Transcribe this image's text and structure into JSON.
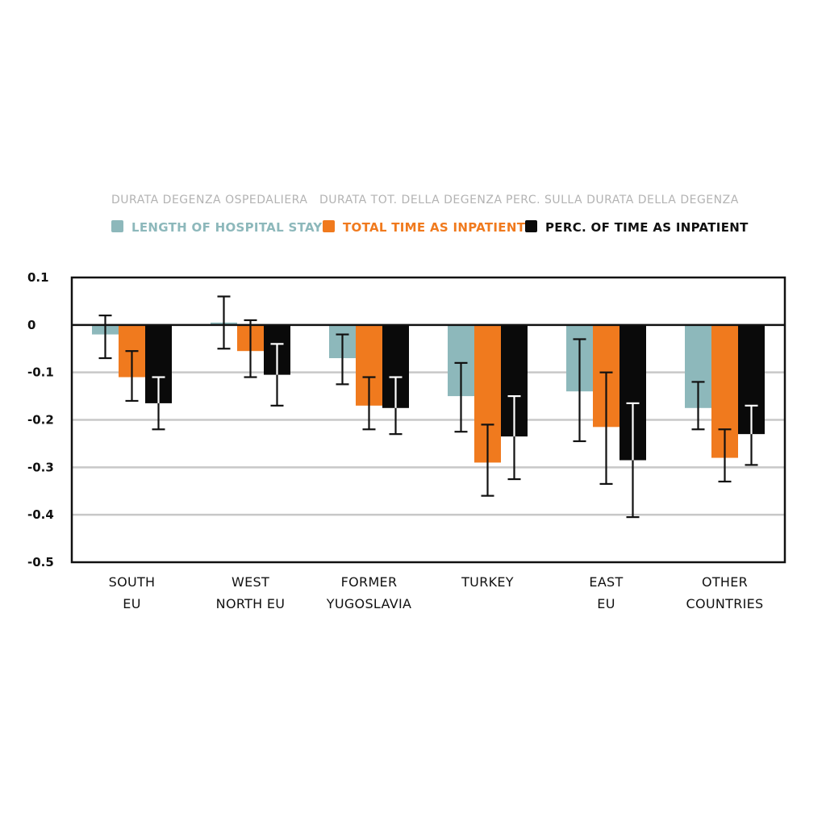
{
  "chart_data": {
    "type": "bar",
    "categories": [
      [
        "SOUTH",
        "EU"
      ],
      [
        "WEST",
        "NORTH EU"
      ],
      [
        "FORMER",
        "YUGOSLAVIA"
      ],
      [
        "TURKEY"
      ],
      [
        "EAST",
        "EU"
      ],
      [
        "OTHER",
        "COUNTRIES"
      ]
    ],
    "legend_italian": [
      "DURATA DEGENZA OSPEDALIERA",
      "DURATA TOT. DELLA DEGENZA",
      "PERC. SULLA DURATA DELLA DEGENZA"
    ],
    "series": [
      {
        "name": "LENGTH OF HOSPITAL STAY",
        "color": "#8db8bb",
        "values": [
          -0.02,
          0.005,
          -0.07,
          -0.15,
          -0.14,
          -0.175
        ],
        "error_low": [
          -0.07,
          -0.05,
          -0.125,
          -0.225,
          -0.245,
          -0.22
        ],
        "error_high": [
          0.02,
          0.06,
          -0.02,
          -0.08,
          -0.03,
          -0.12
        ]
      },
      {
        "name": "TOTAL TIME AS INPATIENT",
        "color": "#f07a1e",
        "values": [
          -0.11,
          -0.055,
          -0.17,
          -0.29,
          -0.215,
          -0.28
        ],
        "error_low": [
          -0.16,
          -0.11,
          -0.22,
          -0.36,
          -0.335,
          -0.33
        ],
        "error_high": [
          -0.055,
          0.01,
          -0.11,
          -0.21,
          -0.1,
          -0.22
        ]
      },
      {
        "name": "PERC. OF TIME AS INPATIENT",
        "color": "#0a0a0a",
        "values": [
          -0.165,
          -0.105,
          -0.175,
          -0.235,
          -0.285,
          -0.23
        ],
        "error_low": [
          -0.22,
          -0.17,
          -0.23,
          -0.325,
          -0.405,
          -0.295
        ],
        "error_high": [
          -0.11,
          -0.04,
          -0.11,
          -0.15,
          -0.165,
          -0.17
        ]
      }
    ],
    "yticks": [
      0.1,
      0,
      -0.1,
      -0.2,
      -0.3,
      -0.4,
      -0.5
    ],
    "ytick_labels": [
      "0.1",
      "0",
      "-0.1",
      "-0.2",
      "-0.3",
      "-0.4",
      "-0.5"
    ],
    "ylim": [
      -0.5,
      0.1
    ],
    "grid": true,
    "legend_position": "top"
  }
}
